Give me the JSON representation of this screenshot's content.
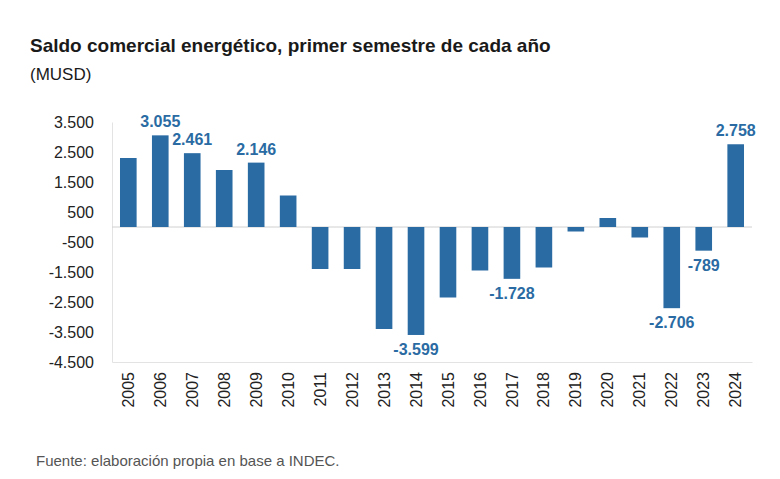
{
  "chart_data": {
    "type": "bar",
    "title": "Saldo comercial energético, primer semestre de cada año",
    "subtitle": "(MUSD)",
    "source": "Fuente: elaboración propia en base a INDEC.",
    "categories": [
      "2005",
      "2006",
      "2007",
      "2008",
      "2009",
      "2010",
      "2011",
      "2012",
      "2013",
      "2014",
      "2015",
      "2016",
      "2017",
      "2018",
      "2019",
      "2020",
      "2021",
      "2022",
      "2023",
      "2024"
    ],
    "values": [
      2300,
      3055,
      2461,
      1900,
      2146,
      1050,
      -1400,
      -1400,
      -3400,
      -3599,
      -2350,
      -1450,
      -1728,
      -1350,
      -150,
      300,
      -350,
      -2706,
      -789,
      2758
    ],
    "value_labels": [
      null,
      "3.055",
      "2.461",
      null,
      "2.146",
      null,
      null,
      null,
      null,
      "-3.599",
      null,
      null,
      "-1.728",
      null,
      null,
      null,
      null,
      "-2.706",
      "-789",
      "2.758"
    ],
    "data_labels": true,
    "color": "#2a6ba3",
    "ylim": [
      -4500,
      3500
    ],
    "yticks": [
      {
        "value": 3500,
        "label": "3.500"
      },
      {
        "value": 2500,
        "label": "2.500"
      },
      {
        "value": 1500,
        "label": "1.500"
      },
      500,
      -500,
      {
        "value": -1500,
        "label": "-1.500"
      },
      {
        "value": -2500,
        "label": "-2.500"
      },
      {
        "value": -3500,
        "label": "-3.500"
      },
      {
        "value": -4500,
        "label": "-4.500"
      }
    ],
    "grid": false
  }
}
